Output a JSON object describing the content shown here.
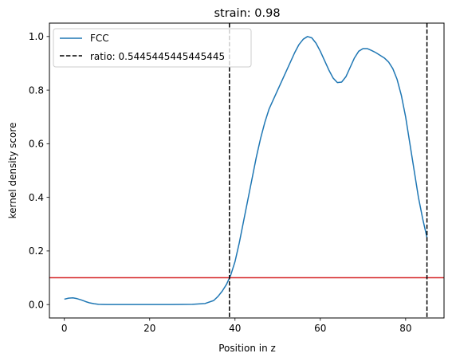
{
  "chart_data": {
    "type": "line",
    "title": "strain: 0.98",
    "xlabel": "Position in z",
    "ylabel": "kernel density score",
    "xlim": [
      -3.5,
      89
    ],
    "ylim": [
      -0.05,
      1.05
    ],
    "xticks": [
      0,
      20,
      40,
      60,
      80
    ],
    "yticks": [
      0.0,
      0.2,
      0.4,
      0.6,
      0.8,
      1.0
    ],
    "xtick_labels": [
      "0",
      "20",
      "40",
      "60",
      "80"
    ],
    "ytick_labels": [
      "0.0",
      "0.2",
      "0.4",
      "0.6",
      "0.8",
      "1.0"
    ],
    "legend_position": "top-left",
    "series": [
      {
        "name": "FCC",
        "color": "#1f77b4",
        "x": [
          0,
          1,
          2,
          3,
          4,
          5,
          6,
          7,
          8,
          10,
          15,
          20,
          25,
          30,
          33,
          35,
          36,
          37,
          38,
          39,
          40,
          41,
          42,
          43,
          44,
          45,
          46,
          47,
          48,
          50,
          52,
          54,
          55,
          56,
          57,
          58,
          59,
          60,
          61,
          62,
          63,
          64,
          65,
          66,
          67,
          68,
          69,
          70,
          71,
          72,
          73,
          74,
          75,
          76,
          77,
          78,
          79,
          80,
          81,
          82,
          83,
          84,
          85
        ],
        "y": [
          0.02,
          0.024,
          0.025,
          0.022,
          0.017,
          0.011,
          0.006,
          0.003,
          0.001,
          0.0,
          0.0,
          0.0,
          0.0,
          0.001,
          0.004,
          0.015,
          0.03,
          0.05,
          0.075,
          0.11,
          0.16,
          0.23,
          0.31,
          0.39,
          0.47,
          0.55,
          0.62,
          0.68,
          0.73,
          0.8,
          0.87,
          0.94,
          0.97,
          0.99,
          1.0,
          0.995,
          0.975,
          0.945,
          0.91,
          0.875,
          0.845,
          0.828,
          0.83,
          0.85,
          0.885,
          0.92,
          0.945,
          0.955,
          0.955,
          0.948,
          0.94,
          0.93,
          0.92,
          0.905,
          0.88,
          0.84,
          0.78,
          0.7,
          0.6,
          0.5,
          0.4,
          0.32,
          0.25
        ]
      }
    ],
    "vlines": [
      {
        "name": "ratio: 0.5445445445445445",
        "x": 38.7,
        "color": "#000000",
        "style": "dashed"
      },
      {
        "name": "",
        "x": 85,
        "color": "#000000",
        "style": "dashed"
      }
    ],
    "hlines": [
      {
        "y": 0.1,
        "color": "#d62728"
      }
    ]
  }
}
